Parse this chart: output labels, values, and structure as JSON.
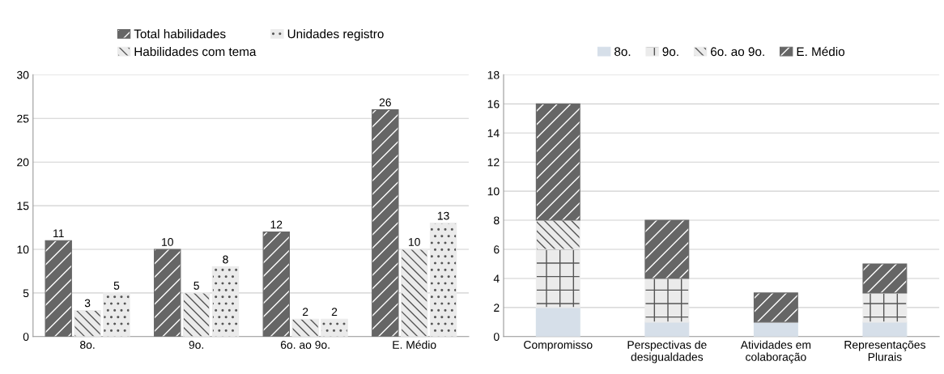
{
  "chart_data": [
    {
      "type": "bar",
      "categories": [
        "8o.",
        "9o.",
        "6o. ao 9o.",
        "E. Médio"
      ],
      "series": [
        {
          "name": "Total habilidades",
          "color": "#666666",
          "values": [
            11,
            10,
            12,
            26
          ]
        },
        {
          "name": "Habilidades com tema",
          "color": "#ebebeb",
          "values": [
            3,
            5,
            2,
            10
          ]
        },
        {
          "name": "Unidades registro",
          "color": "#ebebeb",
          "values": [
            5,
            8,
            2,
            13
          ]
        }
      ],
      "ylim": [
        0,
        30
      ],
      "yticks": [
        0,
        5,
        10,
        15,
        20,
        25,
        30
      ],
      "grid": "y",
      "legend": "top",
      "data_labels": true
    },
    {
      "type": "bar",
      "stacked": true,
      "categories": [
        "Compromisso",
        "Perspectivas de\ndesigualdades",
        "Atividades em\ncolaboração",
        "Representações\nPlurais"
      ],
      "series": [
        {
          "name": "8o.",
          "color": "#d6dfe9",
          "values": [
            2,
            1,
            1,
            1
          ]
        },
        {
          "name": "9o.",
          "color": "#ebebeb",
          "values": [
            4,
            3,
            0,
            2
          ]
        },
        {
          "name": "6o. ao 9o.",
          "color": "#ebebeb",
          "values": [
            2,
            0,
            0,
            0
          ]
        },
        {
          "name": "E. Médio",
          "color": "#666666",
          "values": [
            8,
            4,
            2,
            2
          ]
        }
      ],
      "ylim": [
        0,
        18
      ],
      "yticks": [
        0,
        2,
        4,
        6,
        8,
        10,
        12,
        14,
        16,
        18
      ],
      "grid": "y",
      "legend": "top"
    }
  ]
}
